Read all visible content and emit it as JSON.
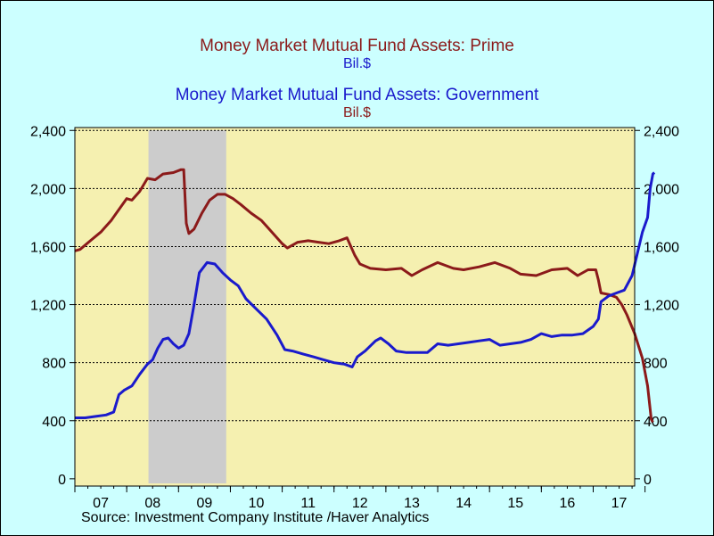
{
  "titles": {
    "prime_title": "Money Market Mutual Fund Assets: Prime",
    "prime_unit": "Bil.$",
    "gov_title": "Money Market Mutual Fund Assets: Government",
    "gov_unit": "Bil.$"
  },
  "source": "Source:  Investment Company Institute /Haver Analytics",
  "colors": {
    "background": "#ccffff",
    "plot_area": "#f5f0b0",
    "recession": "#cccccc",
    "prime": "#8b1a1a",
    "government": "#1a1acc"
  },
  "chart_data": {
    "type": "line",
    "y_ticks": [
      "0",
      "400",
      "800",
      "1,200",
      "1,600",
      "2,000",
      "2,400"
    ],
    "y_tick_values": [
      0,
      400,
      800,
      1200,
      1600,
      2000,
      2400
    ],
    "x_ticks": [
      "07",
      "08",
      "09",
      "10",
      "11",
      "12",
      "13",
      "14",
      "15",
      "16",
      "17"
    ],
    "xlim": [
      2006.5,
      2017.3
    ],
    "ylim": [
      -50,
      2420
    ],
    "grid": "horizontal dotted",
    "recession_band": [
      2007.92,
      2009.42
    ],
    "series": [
      {
        "name": "Money Market Mutual Fund Assets: Prime",
        "color": "#8b1a1a",
        "points": [
          [
            2006.5,
            1570
          ],
          [
            2006.6,
            1580
          ],
          [
            2006.8,
            1640
          ],
          [
            2007.0,
            1700
          ],
          [
            2007.2,
            1780
          ],
          [
            2007.4,
            1880
          ],
          [
            2007.5,
            1930
          ],
          [
            2007.6,
            1920
          ],
          [
            2007.75,
            1980
          ],
          [
            2007.9,
            2070
          ],
          [
            2008.05,
            2060
          ],
          [
            2008.2,
            2100
          ],
          [
            2008.4,
            2110
          ],
          [
            2008.55,
            2130
          ],
          [
            2008.6,
            2130
          ],
          [
            2008.65,
            1760
          ],
          [
            2008.7,
            1690
          ],
          [
            2008.8,
            1720
          ],
          [
            2008.95,
            1830
          ],
          [
            2009.1,
            1920
          ],
          [
            2009.25,
            1960
          ],
          [
            2009.4,
            1960
          ],
          [
            2009.55,
            1930
          ],
          [
            2009.7,
            1890
          ],
          [
            2009.9,
            1830
          ],
          [
            2010.1,
            1780
          ],
          [
            2010.3,
            1700
          ],
          [
            2010.5,
            1620
          ],
          [
            2010.6,
            1590
          ],
          [
            2010.8,
            1630
          ],
          [
            2011.0,
            1640
          ],
          [
            2011.2,
            1630
          ],
          [
            2011.4,
            1620
          ],
          [
            2011.6,
            1640
          ],
          [
            2011.75,
            1660
          ],
          [
            2011.9,
            1540
          ],
          [
            2012.0,
            1480
          ],
          [
            2012.2,
            1450
          ],
          [
            2012.5,
            1440
          ],
          [
            2012.8,
            1450
          ],
          [
            2013.0,
            1400
          ],
          [
            2013.2,
            1440
          ],
          [
            2013.5,
            1490
          ],
          [
            2013.8,
            1450
          ],
          [
            2014.0,
            1440
          ],
          [
            2014.3,
            1460
          ],
          [
            2014.6,
            1490
          ],
          [
            2014.9,
            1450
          ],
          [
            2015.1,
            1410
          ],
          [
            2015.4,
            1400
          ],
          [
            2015.7,
            1440
          ],
          [
            2016.0,
            1450
          ],
          [
            2016.2,
            1400
          ],
          [
            2016.4,
            1440
          ],
          [
            2016.55,
            1440
          ],
          [
            2016.6,
            1370
          ],
          [
            2016.65,
            1280
          ],
          [
            2016.8,
            1270
          ],
          [
            2016.95,
            1250
          ],
          [
            2017.05,
            1200
          ],
          [
            2017.15,
            1130
          ],
          [
            2017.3,
            1000
          ],
          [
            2017.45,
            830
          ],
          [
            2017.55,
            640
          ],
          [
            2017.62,
            410
          ],
          [
            2017.65,
            390
          ]
        ]
      },
      {
        "name": "Money Market Mutual Fund Assets: Government",
        "color": "#1a1acc",
        "points": [
          [
            2006.5,
            420
          ],
          [
            2006.7,
            420
          ],
          [
            2006.9,
            430
          ],
          [
            2007.1,
            440
          ],
          [
            2007.25,
            460
          ],
          [
            2007.35,
            580
          ],
          [
            2007.45,
            610
          ],
          [
            2007.6,
            640
          ],
          [
            2007.75,
            720
          ],
          [
            2007.9,
            790
          ],
          [
            2008.0,
            820
          ],
          [
            2008.1,
            900
          ],
          [
            2008.2,
            960
          ],
          [
            2008.3,
            970
          ],
          [
            2008.4,
            930
          ],
          [
            2008.5,
            900
          ],
          [
            2008.6,
            920
          ],
          [
            2008.7,
            1000
          ],
          [
            2008.8,
            1200
          ],
          [
            2008.9,
            1420
          ],
          [
            2009.05,
            1490
          ],
          [
            2009.2,
            1480
          ],
          [
            2009.35,
            1420
          ],
          [
            2009.5,
            1370
          ],
          [
            2009.65,
            1330
          ],
          [
            2009.8,
            1240
          ],
          [
            2010.0,
            1170
          ],
          [
            2010.2,
            1100
          ],
          [
            2010.4,
            990
          ],
          [
            2010.55,
            890
          ],
          [
            2010.7,
            880
          ],
          [
            2010.9,
            860
          ],
          [
            2011.1,
            840
          ],
          [
            2011.3,
            820
          ],
          [
            2011.5,
            800
          ],
          [
            2011.7,
            790
          ],
          [
            2011.85,
            770
          ],
          [
            2011.95,
            840
          ],
          [
            2012.1,
            880
          ],
          [
            2012.3,
            950
          ],
          [
            2012.4,
            970
          ],
          [
            2012.55,
            930
          ],
          [
            2012.7,
            880
          ],
          [
            2012.9,
            870
          ],
          [
            2013.1,
            870
          ],
          [
            2013.3,
            870
          ],
          [
            2013.5,
            930
          ],
          [
            2013.7,
            920
          ],
          [
            2013.9,
            930
          ],
          [
            2014.1,
            940
          ],
          [
            2014.3,
            950
          ],
          [
            2014.5,
            960
          ],
          [
            2014.7,
            920
          ],
          [
            2014.9,
            930
          ],
          [
            2015.1,
            940
          ],
          [
            2015.3,
            960
          ],
          [
            2015.5,
            1000
          ],
          [
            2015.7,
            980
          ],
          [
            2015.9,
            990
          ],
          [
            2016.1,
            990
          ],
          [
            2016.3,
            1000
          ],
          [
            2016.5,
            1050
          ],
          [
            2016.6,
            1100
          ],
          [
            2016.65,
            1220
          ],
          [
            2016.8,
            1260
          ],
          [
            2016.95,
            1280
          ],
          [
            2017.1,
            1300
          ],
          [
            2017.25,
            1400
          ],
          [
            2017.35,
            1550
          ],
          [
            2017.45,
            1700
          ],
          [
            2017.55,
            1800
          ],
          [
            2017.6,
            2000
          ],
          [
            2017.65,
            2100
          ],
          [
            2017.68,
            2110
          ]
        ]
      }
    ]
  }
}
